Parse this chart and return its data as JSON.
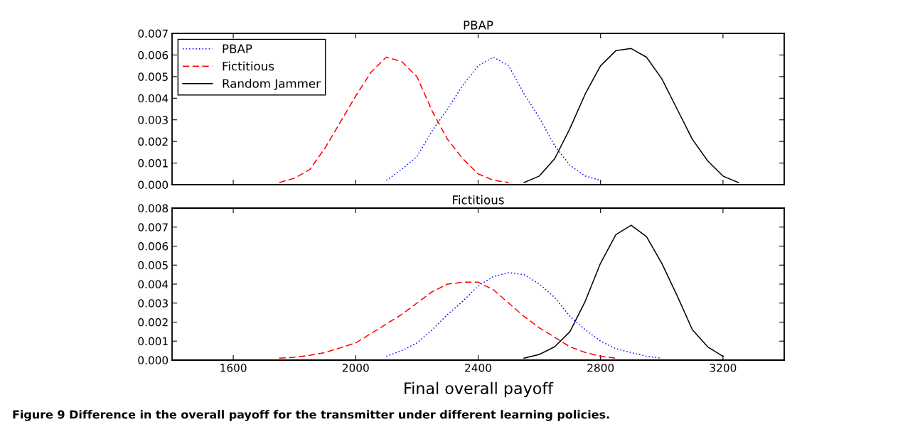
{
  "chart_data": [
    {
      "type": "line",
      "title": "PBAP",
      "xlim": [
        1400,
        3400
      ],
      "xticks": [
        1600,
        2000,
        2400,
        2800,
        3200
      ],
      "ylim": [
        0,
        0.007
      ],
      "yticks": [
        {
          "value": 0,
          "label": "0.000"
        },
        {
          "value": 0.001,
          "label": "0.001"
        },
        {
          "value": 0.002,
          "label": "0.002"
        },
        {
          "value": 0.003,
          "label": "0.003"
        },
        {
          "value": 0.004,
          "label": "0.004"
        },
        {
          "value": 0.005,
          "label": "0.005"
        },
        {
          "value": 0.006,
          "label": "0.006"
        },
        {
          "value": 0.007,
          "label": "0.007"
        }
      ],
      "tick_labels": "y",
      "legend": "top left",
      "grid": false,
      "series": [
        {
          "name": "PBAP",
          "color": "#0000ff",
          "line_style": "dotted",
          "x": [
            2100,
            2150,
            2200,
            2250,
            2300,
            2350,
            2400,
            2450,
            2500,
            2550,
            2600,
            2650,
            2700,
            2750,
            2800
          ],
          "values": [
            0.0002,
            0.0007,
            0.0013,
            0.0025,
            0.0035,
            0.0046,
            0.0055,
            0.0059,
            0.0055,
            0.0042,
            0.0031,
            0.0018,
            0.0009,
            0.0004,
            0.0002
          ]
        },
        {
          "name": "Fictitious",
          "color": "#ff0000",
          "line_style": "dashed",
          "x": [
            1750,
            1800,
            1850,
            1900,
            1950,
            2000,
            2050,
            2100,
            2150,
            2200,
            2250,
            2300,
            2350,
            2400,
            2450,
            2500
          ],
          "values": [
            0.0001,
            0.0003,
            0.0007,
            0.0017,
            0.0029,
            0.0041,
            0.0052,
            0.0059,
            0.0057,
            0.005,
            0.0034,
            0.0021,
            0.0012,
            0.0005,
            0.0002,
            0.0001
          ]
        },
        {
          "name": "Random Jammer",
          "color": "#000000",
          "line_style": "solid",
          "x": [
            2550,
            2600,
            2650,
            2700,
            2750,
            2800,
            2850,
            2900,
            2950,
            3000,
            3050,
            3100,
            3150,
            3200,
            3250
          ],
          "values": [
            0.0001,
            0.0004,
            0.0012,
            0.0026,
            0.0042,
            0.0055,
            0.0062,
            0.0063,
            0.0059,
            0.0049,
            0.0035,
            0.0021,
            0.0011,
            0.0004,
            0.0001
          ]
        }
      ]
    },
    {
      "type": "line",
      "title": "Fictitious",
      "xlabel": "Final overall payoff",
      "xlim": [
        1400,
        3400
      ],
      "xticks": [
        1600,
        2000,
        2400,
        2800,
        3200
      ],
      "ylim": [
        0,
        0.008
      ],
      "yticks": [
        {
          "value": 0,
          "label": "0.000"
        },
        {
          "value": 0.001,
          "label": "0.001"
        },
        {
          "value": 0.002,
          "label": "0.002"
        },
        {
          "value": 0.003,
          "label": "0.003"
        },
        {
          "value": 0.004,
          "label": "0.004"
        },
        {
          "value": 0.005,
          "label": "0.005"
        },
        {
          "value": 0.006,
          "label": "0.006"
        },
        {
          "value": 0.007,
          "label": "0.007"
        },
        {
          "value": 0.008,
          "label": "0.008"
        }
      ],
      "legend": false,
      "grid": false,
      "annotations": [
        "Figure 9 Difference in the overall payoff for the transmitter under different learning policies."
      ],
      "series": [
        {
          "color": "#0000ff",
          "line_style": "dotted",
          "x": [
            2100,
            2150,
            2200,
            2250,
            2300,
            2350,
            2400,
            2450,
            2500,
            2550,
            2600,
            2650,
            2700,
            2750,
            2800,
            2850,
            2900,
            2950,
            3000
          ],
          "values": [
            0.0002,
            0.0005,
            0.0009,
            0.0016,
            0.0024,
            0.0031,
            0.0039,
            0.0044,
            0.0046,
            0.0045,
            0.004,
            0.0033,
            0.0023,
            0.0016,
            0.001,
            0.0006,
            0.0004,
            0.0002,
            0.0001
          ]
        },
        {
          "color": "#ff0000",
          "line_style": "dashed",
          "x": [
            1750,
            1800,
            1850,
            1900,
            1950,
            2000,
            2050,
            2100,
            2150,
            2200,
            2250,
            2300,
            2350,
            2400,
            2450,
            2500,
            2550,
            2600,
            2650,
            2700,
            2750,
            2800,
            2850
          ],
          "values": [
            0.0001,
            0.00015,
            0.00025,
            0.0004,
            0.00065,
            0.0009,
            0.0014,
            0.0019,
            0.0024,
            0.003,
            0.0036,
            0.004,
            0.0041,
            0.0041,
            0.0037,
            0.003,
            0.0023,
            0.0017,
            0.0012,
            0.0007,
            0.0004,
            0.0002,
            0.0001
          ]
        },
        {
          "color": "#000000",
          "line_style": "solid",
          "x": [
            2550,
            2600,
            2650,
            2700,
            2750,
            2800,
            2850,
            2900,
            2950,
            3000,
            3050,
            3100,
            3150,
            3200
          ],
          "values": [
            0.0001,
            0.0003,
            0.0007,
            0.0015,
            0.0031,
            0.0051,
            0.0066,
            0.0071,
            0.0065,
            0.0051,
            0.0034,
            0.0016,
            0.0007,
            0.0002
          ]
        }
      ]
    }
  ]
}
